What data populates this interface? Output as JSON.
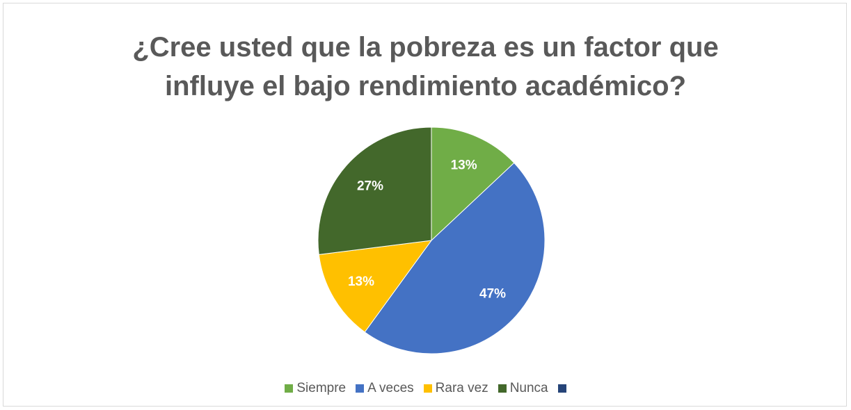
{
  "chart_data": {
    "type": "pie",
    "title": "¿Cree usted que la pobreza es un factor que influye el bajo rendimiento académico?",
    "categories": [
      "Siempre",
      "A veces",
      "Rara vez",
      "Nunca",
      null
    ],
    "values": [
      13,
      47,
      13,
      27,
      0
    ],
    "value_labels": [
      "13%",
      "47%",
      "13%",
      "27%",
      null
    ],
    "colors": [
      "#70ad47",
      "#4472c4",
      "#ffc000",
      "#43682b",
      "#264478"
    ],
    "legend": "bottom"
  }
}
